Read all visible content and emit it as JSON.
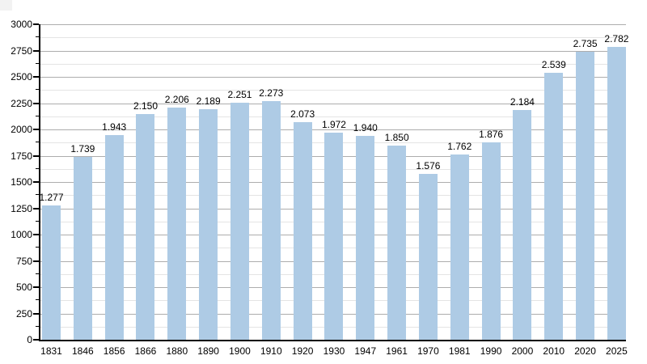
{
  "chart_data": {
    "type": "bar",
    "title": "",
    "xlabel": "",
    "ylabel": "",
    "categories": [
      "1831",
      "1846",
      "1856",
      "1866",
      "1880",
      "1890",
      "1900",
      "1910",
      "1920",
      "1930",
      "1947",
      "1961",
      "1970",
      "1981",
      "1990",
      "2000",
      "2010",
      "2020",
      "2025"
    ],
    "values": [
      1277,
      1739,
      1943,
      2150,
      2206,
      2189,
      2251,
      2273,
      2073,
      1972,
      1940,
      1850,
      1576,
      1762,
      1876,
      2184,
      2539,
      2735,
      2782
    ],
    "value_labels": [
      "1.277",
      "1.739",
      "1.943",
      "2.150",
      "2.206",
      "2.189",
      "2.251",
      "2.273",
      "2.073",
      "1.972",
      "1.940",
      "1.850",
      "1.576",
      "1.762",
      "1.876",
      "2.184",
      "2.539",
      "2.735",
      "2.782"
    ],
    "ylim": [
      0,
      3000
    ],
    "y_major_step": 250,
    "y_minor_step": 125,
    "y_tick_labels": [
      "0",
      "250",
      "500",
      "750",
      "1000",
      "1250",
      "1500",
      "1750",
      "2000",
      "2250",
      "2500",
      "2750",
      "3000"
    ],
    "grid": "on",
    "legend_position": "none",
    "bar_color": "#aecbe5",
    "grid_major_color": "#adadad",
    "grid_minor_color": "#e4e4e4",
    "axis_color": "#000000",
    "label_color": "#000000"
  }
}
